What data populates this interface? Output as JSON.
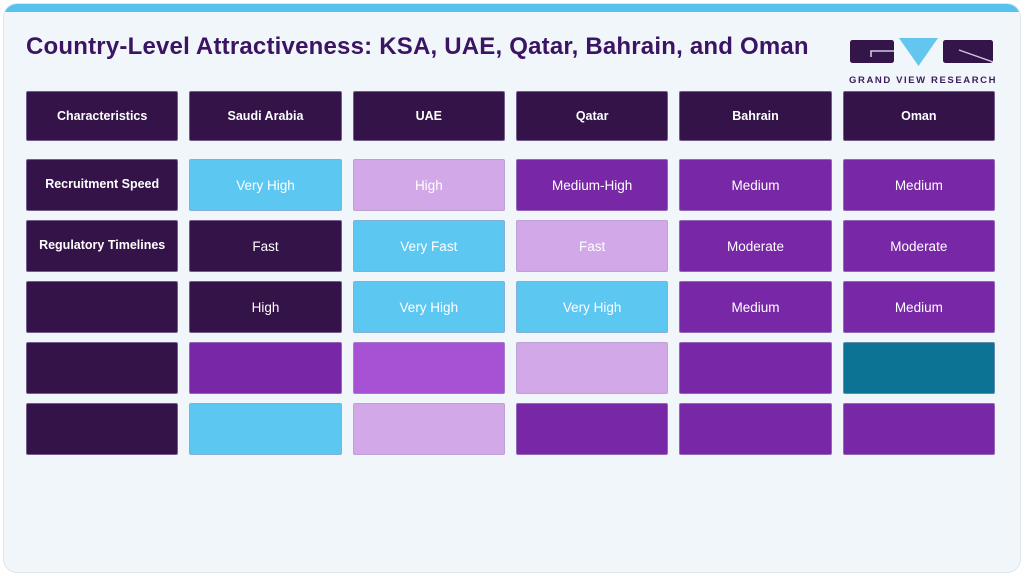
{
  "page": {
    "title": "Country-Level Attractiveness: KSA, UAE, Qatar, Bahrain, and Oman"
  },
  "brand": {
    "name": "GRAND VIEW RESEARCH"
  },
  "palette": {
    "accent_bar": "#56c2ee",
    "card_bg": "#f0f6fa",
    "title_text": "#3b1463",
    "dark_purple": "#341349",
    "purple": "#7827a6",
    "bright_purple": "#a751d4",
    "lavender": "#d3a8e9",
    "light_blue": "#5cc7f1",
    "teal": "#0d7394"
  },
  "chart_data": {
    "type": "table",
    "title": "Country-Level Attractiveness: KSA, UAE, Qatar, Bahrain, and Oman",
    "columns": [
      "Characteristics",
      "Saudi Arabia",
      "UAE",
      "Qatar",
      "Bahrain",
      "Oman"
    ],
    "rows": [
      [
        "Recruitment Speed",
        "Very High",
        "High",
        "Medium-High",
        "Medium",
        "Medium"
      ],
      [
        "Regulatory Timelines",
        "Fast",
        "Very Fast",
        "Fast",
        "Moderate",
        "Moderate"
      ],
      [
        "",
        "High",
        "Very High",
        "Very High",
        "Medium",
        "Medium"
      ],
      [
        "",
        "",
        "",
        "",
        "",
        ""
      ],
      [
        "",
        "",
        "",
        "",
        "",
        ""
      ]
    ]
  },
  "table": {
    "headers": [
      "Characteristics",
      "Saudi Arabia",
      "UAE",
      "Qatar",
      "Bahrain",
      "Oman"
    ],
    "rows": [
      {
        "label": "Recruitment Speed",
        "cells": [
          {
            "text": "Very High",
            "color": "light_blue"
          },
          {
            "text": "High",
            "color": "lavender"
          },
          {
            "text": "Medium-High",
            "color": "purple"
          },
          {
            "text": "Medium",
            "color": "purple"
          },
          {
            "text": "Medium",
            "color": "purple"
          }
        ]
      },
      {
        "label": "Regulatory Timelines",
        "cells": [
          {
            "text": "Fast",
            "color": "dark_purple"
          },
          {
            "text": "Very Fast",
            "color": "light_blue"
          },
          {
            "text": "Fast",
            "color": "lavender"
          },
          {
            "text": "Moderate",
            "color": "purple"
          },
          {
            "text": "Moderate",
            "color": "purple"
          }
        ]
      },
      {
        "label": "",
        "cells": [
          {
            "text": "High",
            "color": "dark_purple"
          },
          {
            "text": "Very High",
            "color": "light_blue"
          },
          {
            "text": "Very High",
            "color": "light_blue"
          },
          {
            "text": "Medium",
            "color": "purple"
          },
          {
            "text": "Medium",
            "color": "purple"
          }
        ]
      },
      {
        "label": "",
        "cells": [
          {
            "text": "",
            "color": "purple"
          },
          {
            "text": "",
            "color": "bright_purple"
          },
          {
            "text": "",
            "color": "lavender"
          },
          {
            "text": "",
            "color": "purple"
          },
          {
            "text": "",
            "color": "teal"
          }
        ]
      },
      {
        "label": "",
        "cells": [
          {
            "text": "",
            "color": "light_blue"
          },
          {
            "text": "",
            "color": "lavender"
          },
          {
            "text": "",
            "color": "purple"
          },
          {
            "text": "",
            "color": "purple"
          },
          {
            "text": "",
            "color": "purple"
          }
        ]
      }
    ]
  }
}
